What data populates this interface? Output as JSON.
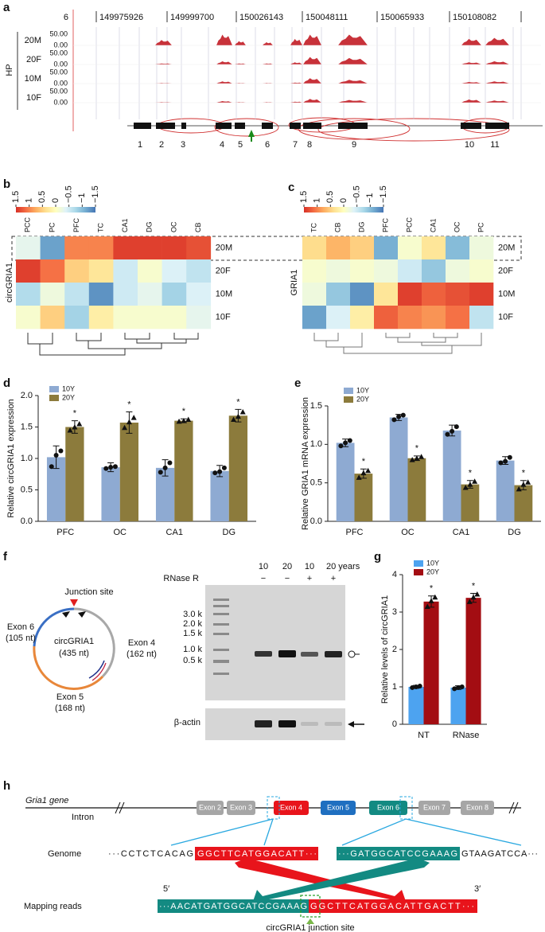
{
  "panel_labels": [
    "a",
    "b",
    "c",
    "d",
    "e",
    "f",
    "g",
    "h"
  ],
  "panel_a": {
    "chromosome": "6",
    "coordinates": [
      "149975926",
      "149999700",
      "150026143",
      "150048111",
      "150065933",
      "150108082"
    ],
    "group": "HP",
    "tracks": [
      {
        "name": "20M",
        "max": "50.00",
        "min": "0.00"
      },
      {
        "name": "20F",
        "max": "50.00",
        "min": "0.00"
      },
      {
        "name": "10M",
        "max": "50.00",
        "min": "0.00"
      },
      {
        "name": "10F",
        "max": "50.00",
        "min": "0.00"
      }
    ],
    "exons": [
      "1",
      "2",
      "3",
      "4",
      "5",
      "6",
      "7",
      "8",
      "9",
      "10",
      "11"
    ]
  },
  "chart_data": [
    {
      "type": "heatmap",
      "ylabel": "circGRIA1",
      "columns": [
        "PCC",
        "PC",
        "PFC",
        "TC",
        "CA1",
        "DG",
        "OC",
        "CB"
      ],
      "rows": [
        "20M",
        "20F",
        "10M",
        "10F"
      ],
      "values": [
        [
          -0.3,
          -1.2,
          1.0,
          1.0,
          1.4,
          1.4,
          1.4,
          1.3
        ],
        [
          1.4,
          1.1,
          0.5,
          0.3,
          -0.5,
          -0.1,
          -0.4,
          -0.6
        ],
        [
          -0.7,
          -0.2,
          -0.6,
          -1.3,
          -0.5,
          -0.3,
          -0.8,
          -0.4
        ],
        [
          -0.1,
          0.5,
          -0.8,
          0.2,
          -0.1,
          -0.1,
          -0.1,
          -0.3
        ]
      ],
      "colorscale": [
        "#d73027",
        "#f46d43",
        "#fdae61",
        "#fee090",
        "#ffffbf",
        "#e0f3f8",
        "#abd9e9",
        "#74add1",
        "#4575b4"
      ],
      "zlim": [
        1.5,
        -1.5
      ],
      "colorbar_ticks": [
        1.5,
        1,
        0.5,
        0,
        {
          "value": -0.5,
          "label": "−0.5"
        },
        {
          "value": -1,
          "label": "−1"
        },
        {
          "value": -1.5,
          "label": "−1.5"
        }
      ]
    },
    {
      "type": "heatmap",
      "ylabel": "GRIA1",
      "columns": [
        "TC",
        "CB",
        "DG",
        "PFC",
        "PCC",
        "CA1",
        "OC",
        "PC"
      ],
      "rows": [
        "20M",
        "20F",
        "10M",
        "10F"
      ],
      "values": [
        [
          0.4,
          0.7,
          0.5,
          -1.1,
          -0.1,
          0.3,
          -1.0,
          -0.2
        ],
        [
          -0.1,
          -0.2,
          -0.1,
          -0.2,
          -0.5,
          -0.9,
          -0.2,
          -0.1
        ],
        [
          -0.2,
          -0.9,
          -1.3,
          0.3,
          1.4,
          1.2,
          1.3,
          1.4
        ],
        [
          -1.2,
          -0.4,
          0.2,
          1.2,
          1.0,
          0.9,
          1.1,
          -0.6
        ]
      ],
      "colorscale": [
        "#d73027",
        "#f46d43",
        "#fdae61",
        "#fee090",
        "#ffffbf",
        "#e0f3f8",
        "#abd9e9",
        "#74add1",
        "#4575b4"
      ],
      "zlim": [
        1.5,
        -1.5
      ],
      "colorbar_ticks": [
        1.5,
        1,
        0.5,
        0,
        {
          "value": -0.5,
          "label": "−0.5"
        },
        {
          "value": -1,
          "label": "−1"
        },
        {
          "value": -1.5,
          "label": "−1.5"
        }
      ]
    },
    {
      "type": "bar",
      "ylabel": "Relative circGRIA1 expression",
      "categories": [
        "PFC",
        "OC",
        "CA1",
        "DG"
      ],
      "series": [
        {
          "name": "10Y",
          "color": "#8eaad2",
          "marker": "circle",
          "values": [
            1.02,
            0.86,
            0.85,
            0.8
          ],
          "errors": [
            0.18,
            0.07,
            0.13,
            0.09
          ],
          "points": [
            [
              0.87,
              1.05,
              1.12
            ],
            [
              0.84,
              0.86,
              0.87
            ],
            [
              0.78,
              0.85,
              0.93
            ],
            [
              0.77,
              0.79,
              0.85
            ]
          ]
        },
        {
          "name": "20Y",
          "color": "#8c7b3c",
          "marker": "triangle",
          "values": [
            1.5,
            1.57,
            1.6,
            1.68
          ],
          "errors": [
            0.1,
            0.17,
            0.03,
            0.1
          ],
          "points": [
            [
              1.45,
              1.5,
              1.55
            ],
            [
              1.49,
              1.58,
              1.65
            ],
            [
              1.59,
              1.6,
              1.62
            ],
            [
              1.62,
              1.67,
              1.74
            ]
          ],
          "annotations": [
            "*",
            "*",
            "*",
            "*"
          ]
        }
      ],
      "ylim": [
        0,
        2
      ],
      "yticks": [
        {
          "value": 0,
          "label": "0.0"
        },
        0.5,
        {
          "value": 1,
          "label": "1.0"
        },
        1.5,
        {
          "value": 2,
          "label": "2.0"
        }
      ]
    },
    {
      "type": "bar",
      "ylabel": "Relative GRIA1 mRNA expression",
      "categories": [
        "PFC",
        "OC",
        "CA1",
        "DG"
      ],
      "series": [
        {
          "name": "10Y",
          "color": "#8eaad2",
          "marker": "circle",
          "values": [
            1.02,
            1.35,
            1.18,
            0.79
          ],
          "errors": [
            0.05,
            0.04,
            0.07,
            0.05
          ],
          "points": [
            [
              0.98,
              1.02,
              1.05
            ],
            [
              1.32,
              1.36,
              1.38
            ],
            [
              1.13,
              1.17,
              1.23
            ],
            [
              0.76,
              0.78,
              0.83
            ]
          ]
        },
        {
          "name": "20Y",
          "color": "#8c7b3c",
          "marker": "triangle",
          "values": [
            0.62,
            0.82,
            0.48,
            0.47
          ],
          "errors": [
            0.06,
            0.03,
            0.05,
            0.06
          ],
          "points": [
            [
              0.57,
              0.63,
              0.66
            ],
            [
              0.8,
              0.82,
              0.84
            ],
            [
              0.44,
              0.48,
              0.52
            ],
            [
              0.42,
              0.48,
              0.51
            ]
          ],
          "annotations": [
            "*",
            "*",
            "*",
            "*"
          ]
        }
      ],
      "ylim": [
        0,
        1.5
      ],
      "yticks": [
        {
          "value": 0,
          "label": "0.0"
        },
        0.5,
        {
          "value": 1,
          "label": "1.0"
        },
        1.5
      ]
    },
    {
      "type": "bar",
      "ylabel": "Relative levels of circGRIA1",
      "categories": [
        "NT",
        "RNase"
      ],
      "series": [
        {
          "name": "10Y",
          "color": "#4da3f0",
          "marker": "circle",
          "values": [
            1.0,
            0.98
          ],
          "errors": [
            0.04,
            0.05
          ],
          "points": [
            [
              0.98,
              1.0,
              1.02
            ],
            [
              0.95,
              0.98,
              1.0
            ]
          ]
        },
        {
          "name": "20Y",
          "color": "#a30d12",
          "marker": "triangle",
          "values": [
            3.28,
            3.38
          ],
          "errors": [
            0.15,
            0.12
          ],
          "points": [
            [
              3.15,
              3.3,
              3.4
            ],
            [
              3.28,
              3.4,
              3.48
            ]
          ],
          "annotations": [
            "*",
            "*"
          ]
        }
      ],
      "ylim": [
        0,
        4
      ],
      "yticks": [
        0,
        1,
        2,
        3,
        4
      ]
    }
  ],
  "panel_f": {
    "junction": "Junction site",
    "center_name": "circGRIA1",
    "center_len": "(435 nt)",
    "exons": [
      {
        "name": "Exon 6",
        "len": "(105 nt)"
      },
      {
        "name": "Exon 4",
        "len": "(162 nt)"
      },
      {
        "name": "Exon 5",
        "len": "(168 nt)"
      }
    ],
    "gel": {
      "treatment": "RNase R",
      "lanes": [
        "10",
        "20",
        "10",
        "20 years"
      ],
      "signs": [
        "−",
        "−",
        "+",
        "+"
      ],
      "ladder": [
        "3.0 k",
        "2.0 k",
        "1.5 k",
        "1.0 k",
        "0.5 k"
      ],
      "control": "β-actin"
    }
  },
  "panel_h": {
    "gene": "Gria1 gene",
    "intron": "Intron",
    "exons": [
      "Exon 2",
      "Exon 3",
      "Exon 4",
      "Exon 5",
      "Exon 6",
      "Exon 7",
      "Exon 8"
    ],
    "genome_label": "Genome",
    "genome": [
      "···CCTCTCACAG",
      "GGCTTCATGGACATT···",
      "···GATGGCATCCGAAAG",
      "GTAAGATCCA···"
    ],
    "reads_label": "Mapping reads",
    "five": "5′",
    "three": "3′",
    "reads": [
      "···AACATGATGGCATCCGAAAG",
      "GGCTTCATGGACATTGACTT···"
    ],
    "junction": "circGRIA1 junction site"
  }
}
